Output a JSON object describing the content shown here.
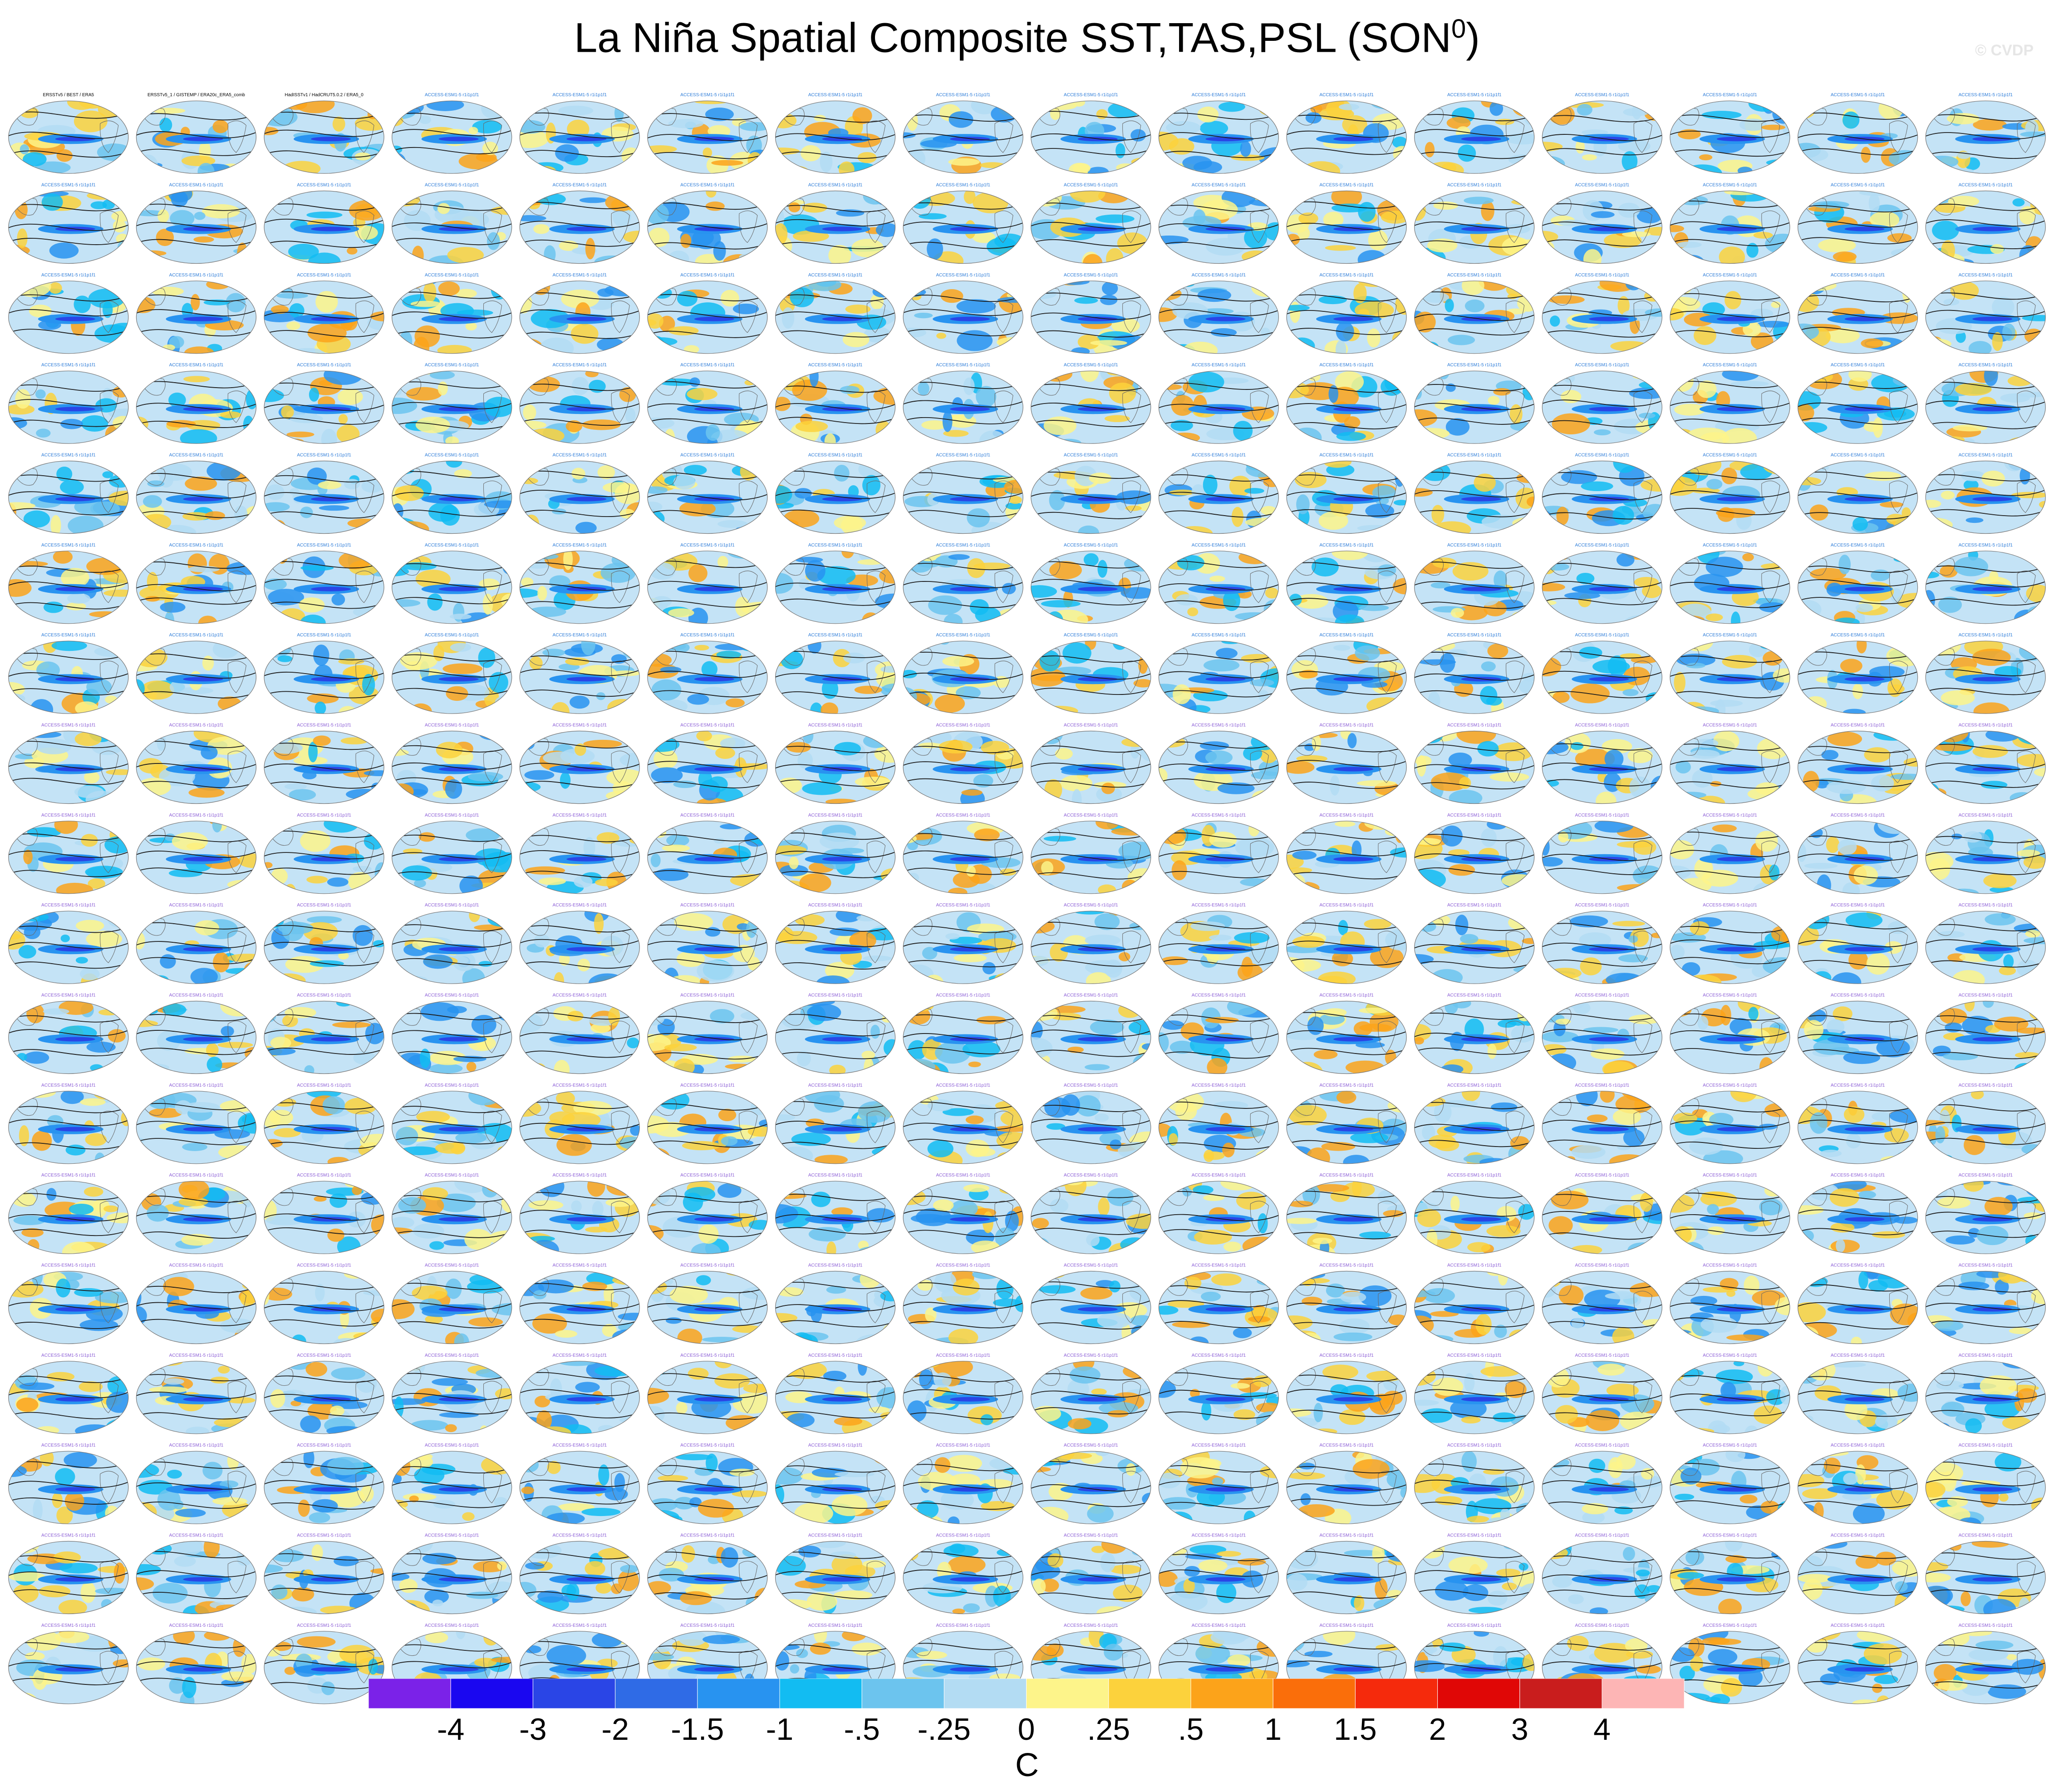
{
  "title": "La Niña Spatial Composite SST,TAS,PSL (SON",
  "title_superscript": "0",
  "title_close": ")",
  "watermark": "© CVDP",
  "chart_data": {
    "type": "heatmap",
    "title": "La Niña Spatial Composite SST,TAS,PSL (SON0)",
    "panels": {
      "rows": 18,
      "columns": 16
    },
    "observation_panel_titles": [
      "ERSSTv5 / BEST / ERA5",
      "ERSSTv5_1 / GISTEMP / ERA20c_ERA5_comb",
      "HadISSTv1 / HadCRUT5.0.2 / ERA5_0"
    ],
    "model_panel_title_example": "ACCESS-ESM1-5 r1i1p1f1",
    "colorbar": {
      "unit": "C",
      "ticks": [
        "-4",
        "-3",
        "-2",
        "-1.5",
        "-1",
        "-.5",
        "-.25",
        "0",
        ".25",
        ".5",
        "1",
        "1.5",
        "2",
        "3",
        "4"
      ],
      "colors": [
        "#7b22e8",
        "#1a07f0",
        "#2a45e6",
        "#2f6be6",
        "#2893f0",
        "#12bcf2",
        "#6cc4ee",
        "#b3dcf3",
        "#fdf48a",
        "#fcd23c",
        "#fca31a",
        "#fa6e0a",
        "#f52a0c",
        "#e00706",
        "#c91d1d",
        "#fdb5b5"
      ]
    }
  }
}
